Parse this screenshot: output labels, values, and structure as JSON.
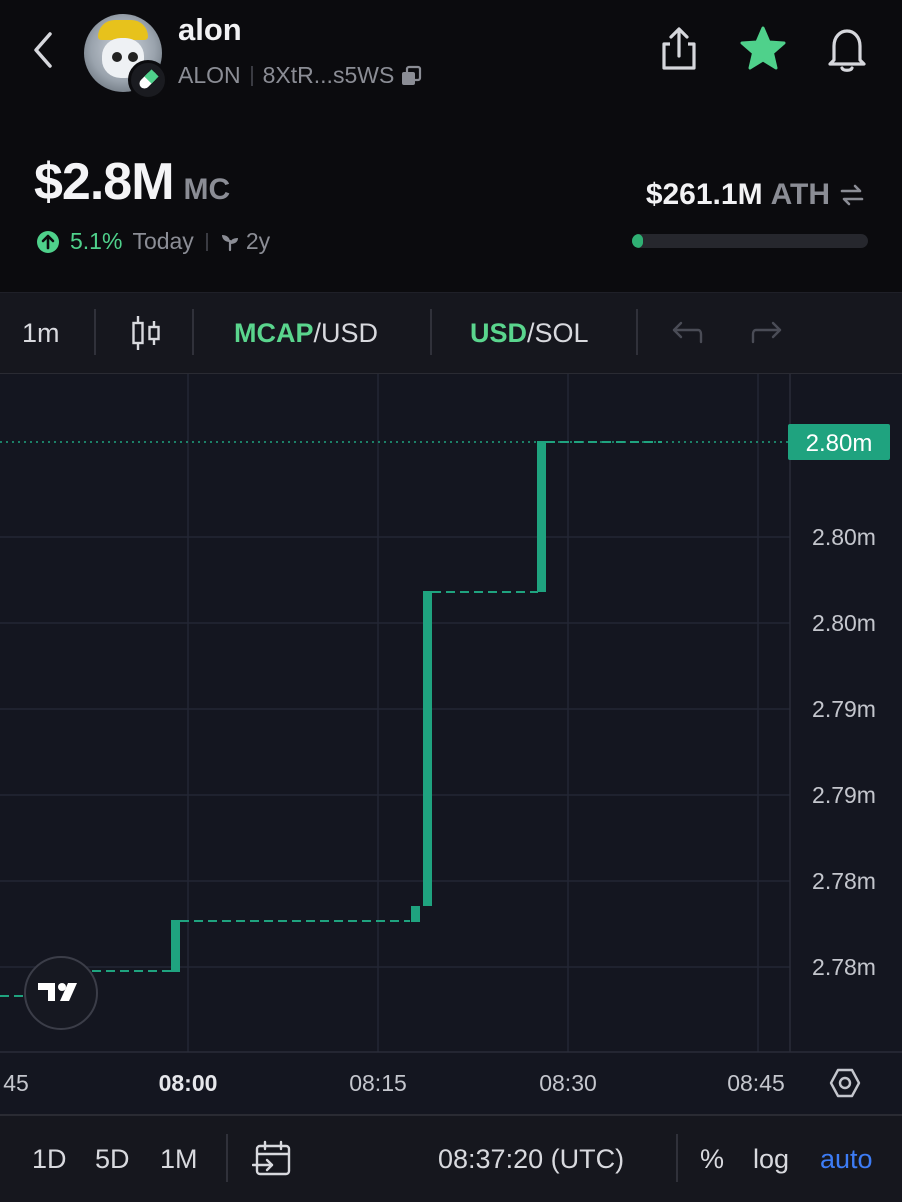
{
  "header": {
    "token_name": "alon",
    "symbol": "ALON",
    "address": "8XtR...s5WS",
    "icons": [
      "back-icon",
      "share-icon",
      "star-icon",
      "bell-icon",
      "copy-icon",
      "pill-icon"
    ],
    "star_color": "#4fd18b"
  },
  "market": {
    "cap_value": "$2.8M",
    "cap_label": "MC",
    "change_pct": "5.1%",
    "change_period": "Today",
    "age": "2y",
    "ath_value": "$261.1M",
    "ath_label": "ATH",
    "ath_progress": 0.011
  },
  "toolbar": {
    "interval": "1m",
    "mcap_active": "MCAP",
    "mcap_rest": "/USD",
    "usd_active": "USD",
    "usd_rest": "/SOL"
  },
  "chart_data": {
    "type": "line",
    "style": "step",
    "x_tick_labels": [
      "45",
      "08:00",
      "08:15",
      "08:30",
      "08:45"
    ],
    "y_tick_labels": [
      "2.80m",
      "2.80m",
      "2.79m",
      "2.79m",
      "2.78m",
      "2.78m"
    ],
    "last_value_label": "2.80m",
    "accent_color": "#1fa37f",
    "grid": true
  },
  "bottombar": {
    "ranges": [
      "1D",
      "5D",
      "1M"
    ],
    "time": "08:37:20 (UTC)",
    "percent": "%",
    "log": "log",
    "auto": "auto"
  }
}
